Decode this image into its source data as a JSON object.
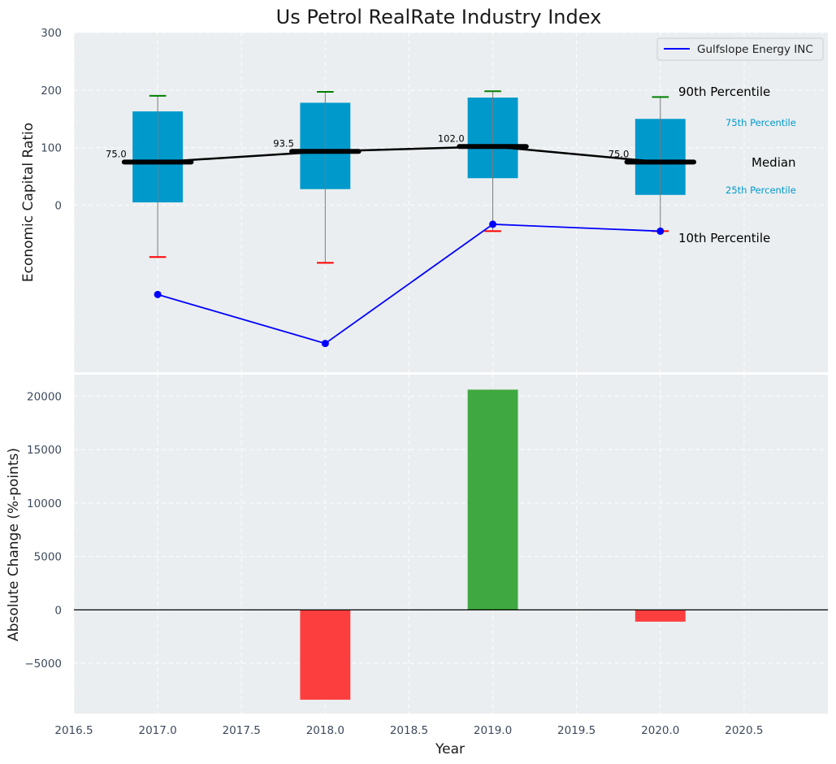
{
  "chart_data": {
    "title": "Us Petrol RealRate Industry Index",
    "xlabel": "Year",
    "x_ticks": [
      "2016.5",
      "2017.0",
      "2017.5",
      "2018.0",
      "2018.5",
      "2019.0",
      "2019.5",
      "2020.0",
      "2020.5"
    ],
    "xlim": [
      2016.5,
      2021.0
    ],
    "top": {
      "type": "box",
      "ylabel": "Economic Capital Ratio",
      "ylim": [
        -290,
        300
      ],
      "y_ticks": [
        {
          "value": 0,
          "label": "0"
        },
        {
          "value": 100,
          "label": "100"
        },
        {
          "value": 200,
          "label": "200"
        },
        {
          "value": 300,
          "label": "300"
        }
      ],
      "boxes": [
        {
          "x": 2017,
          "p10": -90,
          "p25": 5,
          "median": 75,
          "p75": 163,
          "p90": 190,
          "median_label": "75.0"
        },
        {
          "x": 2018,
          "p10": -100,
          "p25": 28,
          "median": 93.5,
          "p75": 178,
          "p90": 197,
          "median_label": "93.5"
        },
        {
          "x": 2019,
          "p10": -45,
          "p25": 47,
          "median": 102,
          "p75": 187,
          "p90": 198,
          "median_label": "102.0"
        },
        {
          "x": 2020,
          "p10": -45,
          "p25": 18,
          "median": 75,
          "p75": 150,
          "p90": 188,
          "median_label": "75.0"
        }
      ],
      "series": [
        {
          "name": "Gulfslope Energy INC",
          "color": "#0000ff",
          "x": [
            2017,
            2018,
            2019,
            2020
          ],
          "values": [
            -155,
            -240,
            -33,
            -45
          ]
        }
      ],
      "annotations": {
        "p90": "90th Percentile",
        "p75": "75th Percentile",
        "median": "Median",
        "p25": "25th Percentile",
        "p10": "10th Percentile"
      },
      "legend_position": "top-right"
    },
    "bottom": {
      "type": "bar",
      "ylabel": "Absolute Change (%-points)",
      "ylim": [
        -9700,
        22000
      ],
      "y_ticks": [
        {
          "value": -5000,
          "label": "−5000"
        },
        {
          "value": 0,
          "label": "0"
        },
        {
          "value": 5000,
          "label": "5000"
        },
        {
          "value": 10000,
          "label": "10000"
        },
        {
          "value": 15000,
          "label": "15000"
        },
        {
          "value": 20000,
          "label": "20000"
        }
      ],
      "x": [
        2017,
        2018,
        2019,
        2020
      ],
      "values": [
        0,
        -8400,
        20600,
        -1100
      ],
      "positive_color": "#2ca02c",
      "negative_color": "#ff2a2a"
    }
  },
  "colors": {
    "box_fill": "#0099cc",
    "median": "#000000",
    "whisker_top": "#008000",
    "whisker_bottom": "#ff0000",
    "panel_bg": "#eaeef0",
    "annotation_small": "#0099cc"
  }
}
